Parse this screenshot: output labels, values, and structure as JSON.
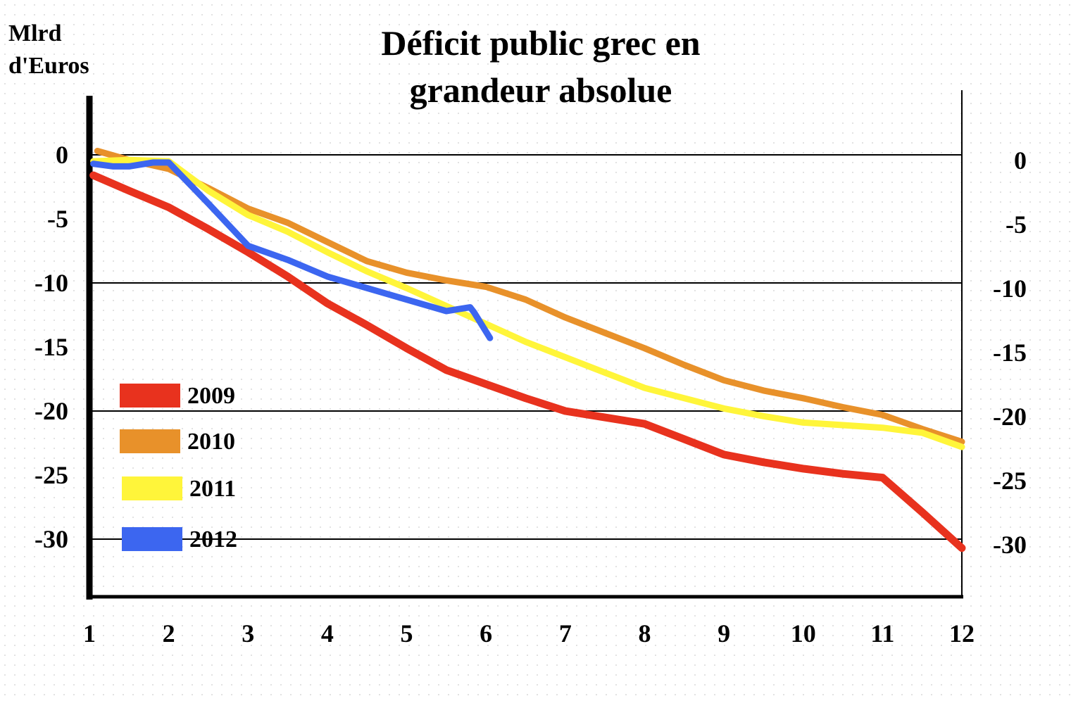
{
  "chart_data": {
    "type": "line",
    "title_lines": [
      "Déficit public grec en",
      "grandeur absolue"
    ],
    "ylabel_lines": [
      "Mlrd",
      "d'Euros"
    ],
    "xlabel": "",
    "x_ticks": [
      1,
      2,
      3,
      4,
      5,
      6,
      7,
      8,
      9,
      10,
      11,
      12
    ],
    "y_ticks": [
      0,
      -5,
      -10,
      -15,
      -20,
      -25,
      -30
    ],
    "xlim": [
      1,
      12
    ],
    "ylim": [
      -34.5,
      4.5
    ],
    "gridlines_y": [
      0,
      -10,
      -20,
      -30
    ],
    "right_axis": true,
    "legend_position": "bottom-left",
    "series": [
      {
        "name": "2009",
        "color": "#e8321e",
        "points": [
          [
            1.05,
            -1.6
          ],
          [
            1.5,
            -2.8
          ],
          [
            2.0,
            -4.1
          ],
          [
            2.5,
            -5.8
          ],
          [
            3.0,
            -7.6
          ],
          [
            3.5,
            -9.5
          ],
          [
            4.0,
            -11.6
          ],
          [
            4.5,
            -13.3
          ],
          [
            5.0,
            -15.1
          ],
          [
            5.5,
            -16.8
          ],
          [
            6.0,
            -17.9
          ],
          [
            6.5,
            -19.0
          ],
          [
            7.0,
            -20.0
          ],
          [
            7.5,
            -20.5
          ],
          [
            8.0,
            -21.0
          ],
          [
            8.5,
            -22.2
          ],
          [
            9.0,
            -23.4
          ],
          [
            9.5,
            -24.0
          ],
          [
            10.0,
            -24.5
          ],
          [
            10.5,
            -24.9
          ],
          [
            11.0,
            -25.2
          ],
          [
            11.5,
            -27.9
          ],
          [
            12.0,
            -30.7
          ]
        ]
      },
      {
        "name": "2010",
        "color": "#e8912a",
        "points": [
          [
            1.1,
            0.3
          ],
          [
            1.5,
            -0.4
          ],
          [
            2.0,
            -1.1
          ],
          [
            2.5,
            -2.6
          ],
          [
            3.0,
            -4.2
          ],
          [
            3.5,
            -5.3
          ],
          [
            4.0,
            -6.8
          ],
          [
            4.5,
            -8.3
          ],
          [
            5.0,
            -9.2
          ],
          [
            5.5,
            -9.8
          ],
          [
            6.0,
            -10.3
          ],
          [
            6.5,
            -11.3
          ],
          [
            7.0,
            -12.7
          ],
          [
            7.5,
            -13.9
          ],
          [
            8.0,
            -15.1
          ],
          [
            8.5,
            -16.4
          ],
          [
            9.0,
            -17.6
          ],
          [
            9.5,
            -18.4
          ],
          [
            10.0,
            -19.0
          ],
          [
            10.5,
            -19.7
          ],
          [
            11.0,
            -20.3
          ],
          [
            11.5,
            -21.4
          ],
          [
            12.0,
            -22.4
          ]
        ]
      },
      {
        "name": "2011",
        "color": "#fff53a",
        "points": [
          [
            1.05,
            -0.5
          ],
          [
            1.5,
            -0.4
          ],
          [
            2.0,
            -0.5
          ],
          [
            2.5,
            -2.8
          ],
          [
            3.0,
            -4.7
          ],
          [
            3.5,
            -6.0
          ],
          [
            4.0,
            -7.6
          ],
          [
            4.5,
            -9.1
          ],
          [
            5.0,
            -10.4
          ],
          [
            5.5,
            -11.8
          ],
          [
            6.0,
            -13.2
          ],
          [
            6.5,
            -14.6
          ],
          [
            7.0,
            -15.8
          ],
          [
            7.5,
            -17.0
          ],
          [
            8.0,
            -18.2
          ],
          [
            8.5,
            -19.0
          ],
          [
            9.0,
            -19.8
          ],
          [
            9.5,
            -20.4
          ],
          [
            10.0,
            -20.9
          ],
          [
            10.5,
            -21.1
          ],
          [
            11.0,
            -21.3
          ],
          [
            11.5,
            -21.7
          ],
          [
            12.0,
            -22.8
          ]
        ]
      },
      {
        "name": "2012",
        "color": "#3c66f0",
        "points": [
          [
            1.05,
            -0.7
          ],
          [
            1.3,
            -0.9
          ],
          [
            1.5,
            -0.9
          ],
          [
            1.8,
            -0.6
          ],
          [
            2.0,
            -0.6
          ],
          [
            2.5,
            -3.8
          ],
          [
            3.0,
            -7.1
          ],
          [
            3.5,
            -8.2
          ],
          [
            4.0,
            -9.5
          ],
          [
            4.5,
            -10.4
          ],
          [
            5.0,
            -11.3
          ],
          [
            5.5,
            -12.2
          ],
          [
            5.8,
            -11.9
          ],
          [
            5.85,
            -12.3
          ],
          [
            6.05,
            -14.3
          ]
        ]
      }
    ]
  }
}
